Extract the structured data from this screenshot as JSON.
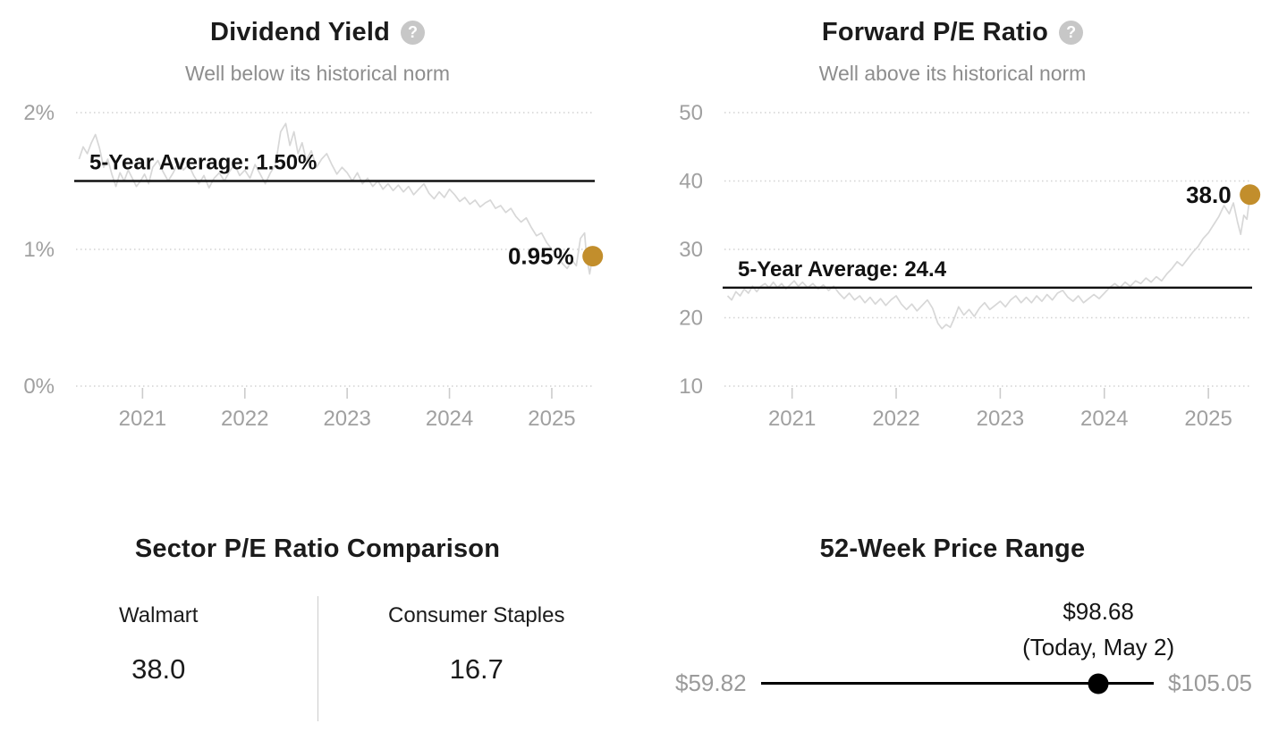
{
  "icons": {
    "help_glyph": "?"
  },
  "colors": {
    "accent_gold": "#c28e2c",
    "series_gray": "#d7d7d7",
    "average_line": "#111111",
    "axis_label": "#a0a0a0",
    "muted_text": "#8d8d8d",
    "grid": "#d2d2d2"
  },
  "chart_data": [
    {
      "type": "line",
      "title": "Dividend Yield",
      "subtitle": "Well below its historical norm",
      "xlabel": "",
      "ylabel": "",
      "xlim": [
        2020.35,
        2025.42
      ],
      "ylim": [
        0,
        2
      ],
      "yticks": [
        {
          "v": 0,
          "label": "0%"
        },
        {
          "v": 1,
          "label": "1%"
        },
        {
          "v": 2,
          "label": "2%"
        }
      ],
      "xticks": [
        2021,
        2022,
        2023,
        2024,
        2025
      ],
      "grid": "dotted-horizontal",
      "legend": "none",
      "average": {
        "value": 1.5,
        "label": "5-Year Average: 1.50%"
      },
      "current": {
        "value": 0.95,
        "label": "0.95%"
      },
      "series": [
        {
          "name": "Dividend Yield (%)",
          "points": [
            [
              2020.38,
              1.66
            ],
            [
              2020.42,
              1.75
            ],
            [
              2020.46,
              1.7
            ],
            [
              2020.5,
              1.78
            ],
            [
              2020.54,
              1.84
            ],
            [
              2020.58,
              1.74
            ],
            [
              2020.62,
              1.6
            ],
            [
              2020.66,
              1.66
            ],
            [
              2020.7,
              1.55
            ],
            [
              2020.74,
              1.46
            ],
            [
              2020.78,
              1.56
            ],
            [
              2020.82,
              1.5
            ],
            [
              2020.86,
              1.58
            ],
            [
              2020.9,
              1.52
            ],
            [
              2020.94,
              1.46
            ],
            [
              2020.98,
              1.5
            ],
            [
              2021.02,
              1.55
            ],
            [
              2021.06,
              1.48
            ],
            [
              2021.1,
              1.6
            ],
            [
              2021.15,
              1.65
            ],
            [
              2021.2,
              1.57
            ],
            [
              2021.25,
              1.5
            ],
            [
              2021.3,
              1.56
            ],
            [
              2021.35,
              1.64
            ],
            [
              2021.4,
              1.58
            ],
            [
              2021.45,
              1.62
            ],
            [
              2021.5,
              1.54
            ],
            [
              2021.55,
              1.48
            ],
            [
              2021.6,
              1.54
            ],
            [
              2021.65,
              1.45
            ],
            [
              2021.7,
              1.52
            ],
            [
              2021.75,
              1.56
            ],
            [
              2021.8,
              1.5
            ],
            [
              2021.85,
              1.57
            ],
            [
              2021.9,
              1.62
            ],
            [
              2021.95,
              1.54
            ],
            [
              2022.0,
              1.58
            ],
            [
              2022.05,
              1.52
            ],
            [
              2022.1,
              1.62
            ],
            [
              2022.15,
              1.55
            ],
            [
              2022.2,
              1.48
            ],
            [
              2022.25,
              1.56
            ],
            [
              2022.3,
              1.62
            ],
            [
              2022.35,
              1.86
            ],
            [
              2022.4,
              1.92
            ],
            [
              2022.44,
              1.76
            ],
            [
              2022.48,
              1.86
            ],
            [
              2022.52,
              1.7
            ],
            [
              2022.56,
              1.78
            ],
            [
              2022.6,
              1.65
            ],
            [
              2022.65,
              1.72
            ],
            [
              2022.7,
              1.6
            ],
            [
              2022.75,
              1.66
            ],
            [
              2022.8,
              1.7
            ],
            [
              2022.85,
              1.62
            ],
            [
              2022.9,
              1.55
            ],
            [
              2022.95,
              1.6
            ],
            [
              2023.0,
              1.56
            ],
            [
              2023.05,
              1.5
            ],
            [
              2023.1,
              1.56
            ],
            [
              2023.15,
              1.48
            ],
            [
              2023.2,
              1.52
            ],
            [
              2023.25,
              1.46
            ],
            [
              2023.3,
              1.5
            ],
            [
              2023.35,
              1.44
            ],
            [
              2023.4,
              1.48
            ],
            [
              2023.45,
              1.43
            ],
            [
              2023.5,
              1.47
            ],
            [
              2023.55,
              1.42
            ],
            [
              2023.6,
              1.46
            ],
            [
              2023.65,
              1.4
            ],
            [
              2023.7,
              1.44
            ],
            [
              2023.75,
              1.48
            ],
            [
              2023.8,
              1.41
            ],
            [
              2023.85,
              1.37
            ],
            [
              2023.9,
              1.42
            ],
            [
              2023.95,
              1.38
            ],
            [
              2024.0,
              1.44
            ],
            [
              2024.05,
              1.4
            ],
            [
              2024.1,
              1.35
            ],
            [
              2024.15,
              1.38
            ],
            [
              2024.2,
              1.33
            ],
            [
              2024.25,
              1.36
            ],
            [
              2024.3,
              1.31
            ],
            [
              2024.35,
              1.34
            ],
            [
              2024.4,
              1.36
            ],
            [
              2024.45,
              1.3
            ],
            [
              2024.5,
              1.32
            ],
            [
              2024.55,
              1.27
            ],
            [
              2024.6,
              1.3
            ],
            [
              2024.65,
              1.24
            ],
            [
              2024.7,
              1.2
            ],
            [
              2024.75,
              1.23
            ],
            [
              2024.8,
              1.16
            ],
            [
              2024.85,
              1.1
            ],
            [
              2024.9,
              1.12
            ],
            [
              2024.95,
              1.05
            ],
            [
              2025.0,
              1.0
            ],
            [
              2025.05,
              0.96
            ],
            [
              2025.1,
              0.9
            ],
            [
              2025.15,
              0.86
            ],
            [
              2025.2,
              0.92
            ],
            [
              2025.24,
              0.88
            ],
            [
              2025.28,
              1.08
            ],
            [
              2025.32,
              1.12
            ],
            [
              2025.34,
              0.95
            ],
            [
              2025.37,
              0.82
            ],
            [
              2025.4,
              0.95
            ]
          ]
        }
      ]
    },
    {
      "type": "line",
      "title": "Forward P/E Ratio",
      "subtitle": "Well above its historical norm",
      "xlabel": "",
      "ylabel": "",
      "xlim": [
        2020.35,
        2025.42
      ],
      "ylim": [
        10,
        50
      ],
      "yticks": [
        {
          "v": 10,
          "label": "10"
        },
        {
          "v": 20,
          "label": "20"
        },
        {
          "v": 30,
          "label": "30"
        },
        {
          "v": 40,
          "label": "40"
        },
        {
          "v": 50,
          "label": "50"
        }
      ],
      "xticks": [
        2021,
        2022,
        2023,
        2024,
        2025
      ],
      "grid": "dotted-horizontal",
      "legend": "none",
      "average": {
        "value": 24.4,
        "label": "5-Year Average: 24.4"
      },
      "current": {
        "value": 38.0,
        "label": "38.0"
      },
      "series": [
        {
          "name": "Forward P/E",
          "points": [
            [
              2020.38,
              23.2
            ],
            [
              2020.42,
              22.6
            ],
            [
              2020.46,
              23.8
            ],
            [
              2020.5,
              23.2
            ],
            [
              2020.54,
              24.2
            ],
            [
              2020.58,
              23.6
            ],
            [
              2020.62,
              24.6
            ],
            [
              2020.66,
              23.8
            ],
            [
              2020.7,
              24.6
            ],
            [
              2020.74,
              25.0
            ],
            [
              2020.78,
              24.4
            ],
            [
              2020.82,
              25.2
            ],
            [
              2020.86,
              24.4
            ],
            [
              2020.9,
              25.0
            ],
            [
              2020.94,
              24.2
            ],
            [
              2020.98,
              24.8
            ],
            [
              2021.02,
              25.4
            ],
            [
              2021.06,
              24.6
            ],
            [
              2021.1,
              25.2
            ],
            [
              2021.15,
              24.4
            ],
            [
              2021.2,
              25.0
            ],
            [
              2021.25,
              24.2
            ],
            [
              2021.3,
              24.8
            ],
            [
              2021.35,
              24.0
            ],
            [
              2021.4,
              24.6
            ],
            [
              2021.45,
              23.6
            ],
            [
              2021.5,
              22.8
            ],
            [
              2021.55,
              23.6
            ],
            [
              2021.6,
              22.6
            ],
            [
              2021.65,
              23.2
            ],
            [
              2021.7,
              22.2
            ],
            [
              2021.75,
              23.0
            ],
            [
              2021.8,
              22.0
            ],
            [
              2021.85,
              22.8
            ],
            [
              2021.9,
              21.8
            ],
            [
              2021.95,
              22.6
            ],
            [
              2022.0,
              23.2
            ],
            [
              2022.05,
              22.0
            ],
            [
              2022.1,
              21.2
            ],
            [
              2022.15,
              22.0
            ],
            [
              2022.2,
              21.0
            ],
            [
              2022.25,
              21.8
            ],
            [
              2022.3,
              22.6
            ],
            [
              2022.35,
              21.4
            ],
            [
              2022.4,
              19.2
            ],
            [
              2022.44,
              18.4
            ],
            [
              2022.48,
              19.0
            ],
            [
              2022.52,
              18.6
            ],
            [
              2022.56,
              20.0
            ],
            [
              2022.6,
              21.6
            ],
            [
              2022.65,
              20.4
            ],
            [
              2022.7,
              21.2
            ],
            [
              2022.75,
              20.2
            ],
            [
              2022.8,
              21.4
            ],
            [
              2022.85,
              22.2
            ],
            [
              2022.9,
              21.2
            ],
            [
              2022.95,
              21.8
            ],
            [
              2023.0,
              22.4
            ],
            [
              2023.05,
              21.6
            ],
            [
              2023.1,
              22.6
            ],
            [
              2023.15,
              23.2
            ],
            [
              2023.2,
              22.2
            ],
            [
              2023.25,
              23.0
            ],
            [
              2023.3,
              22.2
            ],
            [
              2023.35,
              23.2
            ],
            [
              2023.4,
              22.4
            ],
            [
              2023.45,
              23.4
            ],
            [
              2023.5,
              22.6
            ],
            [
              2023.55,
              23.6
            ],
            [
              2023.6,
              24.0
            ],
            [
              2023.65,
              23.0
            ],
            [
              2023.7,
              22.4
            ],
            [
              2023.75,
              23.2
            ],
            [
              2023.8,
              22.2
            ],
            [
              2023.85,
              22.8
            ],
            [
              2023.9,
              23.4
            ],
            [
              2023.95,
              22.8
            ],
            [
              2024.0,
              23.6
            ],
            [
              2024.05,
              24.4
            ],
            [
              2024.1,
              25.0
            ],
            [
              2024.15,
              24.4
            ],
            [
              2024.2,
              25.2
            ],
            [
              2024.25,
              24.6
            ],
            [
              2024.3,
              25.4
            ],
            [
              2024.35,
              25.0
            ],
            [
              2024.4,
              25.8
            ],
            [
              2024.45,
              25.2
            ],
            [
              2024.5,
              26.0
            ],
            [
              2024.55,
              25.4
            ],
            [
              2024.6,
              26.4
            ],
            [
              2024.65,
              27.2
            ],
            [
              2024.7,
              28.2
            ],
            [
              2024.75,
              27.6
            ],
            [
              2024.8,
              28.6
            ],
            [
              2024.85,
              29.6
            ],
            [
              2024.9,
              30.4
            ],
            [
              2024.95,
              31.6
            ],
            [
              2025.0,
              32.4
            ],
            [
              2025.05,
              33.6
            ],
            [
              2025.1,
              34.8
            ],
            [
              2025.15,
              36.4
            ],
            [
              2025.2,
              35.2
            ],
            [
              2025.24,
              36.8
            ],
            [
              2025.28,
              34.0
            ],
            [
              2025.31,
              32.2
            ],
            [
              2025.34,
              35.0
            ],
            [
              2025.37,
              34.4
            ],
            [
              2025.4,
              38.0
            ]
          ]
        }
      ]
    }
  ],
  "sector_comparison": {
    "title": "Sector P/E Ratio Comparison",
    "items": [
      {
        "label": "Walmart",
        "value": "38.0"
      },
      {
        "label": "Consumer Staples",
        "value": "16.7"
      }
    ]
  },
  "price_range": {
    "title": "52-Week Price Range",
    "low_label": "$59.82",
    "high_label": "$105.05",
    "current_label": "$98.68",
    "current_note": "(Today, May 2)",
    "low_value": 59.82,
    "high_value": 105.05,
    "current_value": 98.68
  }
}
